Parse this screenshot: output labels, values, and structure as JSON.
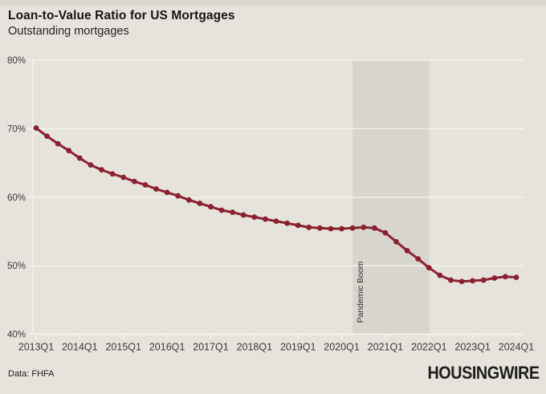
{
  "header": {
    "title": "Loan-to-Value Ratio for US Mortgages",
    "subtitle": "Outstanding mortgages"
  },
  "footer": {
    "source": "Data: FHFA",
    "brand": "HOUSINGWIRE"
  },
  "colors": {
    "background": "#e6e3dd",
    "band": "#d8d5cf",
    "line": "#8b212f",
    "grid": "#f6f4f0",
    "axis_text": "#3a3a3a",
    "band_label_text": "#2e2e2e"
  },
  "chart_data": {
    "type": "line",
    "title": "Loan-to-Value Ratio for US Mortgages",
    "subtitle": "Outstanding mortgages",
    "xlabel": "",
    "ylabel": "",
    "ylim": [
      40,
      80
    ],
    "grid": "horizontal-white",
    "legend": "none",
    "y_tick_labels": [
      "40%",
      "50%",
      "60%",
      "70%",
      "80%"
    ],
    "x_tick_labels": [
      "2013Q1",
      "2014Q1",
      "2015Q1",
      "2016Q1",
      "2017Q1",
      "2018Q1",
      "2019Q1",
      "2020Q1",
      "2021Q1",
      "2022Q1",
      "2023Q1",
      "2024Q1"
    ],
    "x": [
      "2013Q1",
      "2013Q2",
      "2013Q3",
      "2013Q4",
      "2014Q1",
      "2014Q2",
      "2014Q3",
      "2014Q4",
      "2015Q1",
      "2015Q2",
      "2015Q3",
      "2015Q4",
      "2016Q1",
      "2016Q2",
      "2016Q3",
      "2016Q4",
      "2017Q1",
      "2017Q2",
      "2017Q3",
      "2017Q4",
      "2018Q1",
      "2018Q2",
      "2018Q3",
      "2018Q4",
      "2019Q1",
      "2019Q2",
      "2019Q3",
      "2019Q4",
      "2020Q1",
      "2020Q2",
      "2020Q3",
      "2020Q4",
      "2021Q1",
      "2021Q2",
      "2021Q3",
      "2021Q4",
      "2022Q1",
      "2022Q2",
      "2022Q3",
      "2022Q4",
      "2023Q1",
      "2023Q2",
      "2023Q3",
      "2023Q4",
      "2024Q1"
    ],
    "series": [
      {
        "name": "Loan-to-value ratio",
        "color": "#8b212f",
        "values": [
          70.1,
          68.9,
          67.8,
          66.8,
          65.7,
          64.7,
          64.0,
          63.4,
          62.9,
          62.3,
          61.8,
          61.2,
          60.7,
          60.2,
          59.6,
          59.1,
          58.6,
          58.1,
          57.8,
          57.4,
          57.1,
          56.8,
          56.5,
          56.2,
          55.9,
          55.6,
          55.5,
          55.4,
          55.4,
          55.5,
          55.6,
          55.5,
          54.8,
          53.5,
          52.2,
          51.0,
          49.7,
          48.6,
          47.9,
          47.7,
          47.8,
          47.9,
          48.2,
          48.4,
          48.3
        ]
      }
    ],
    "annotation_band": {
      "label": "Pandemic Boom",
      "from": "2020Q2",
      "to": "2022Q1"
    }
  }
}
